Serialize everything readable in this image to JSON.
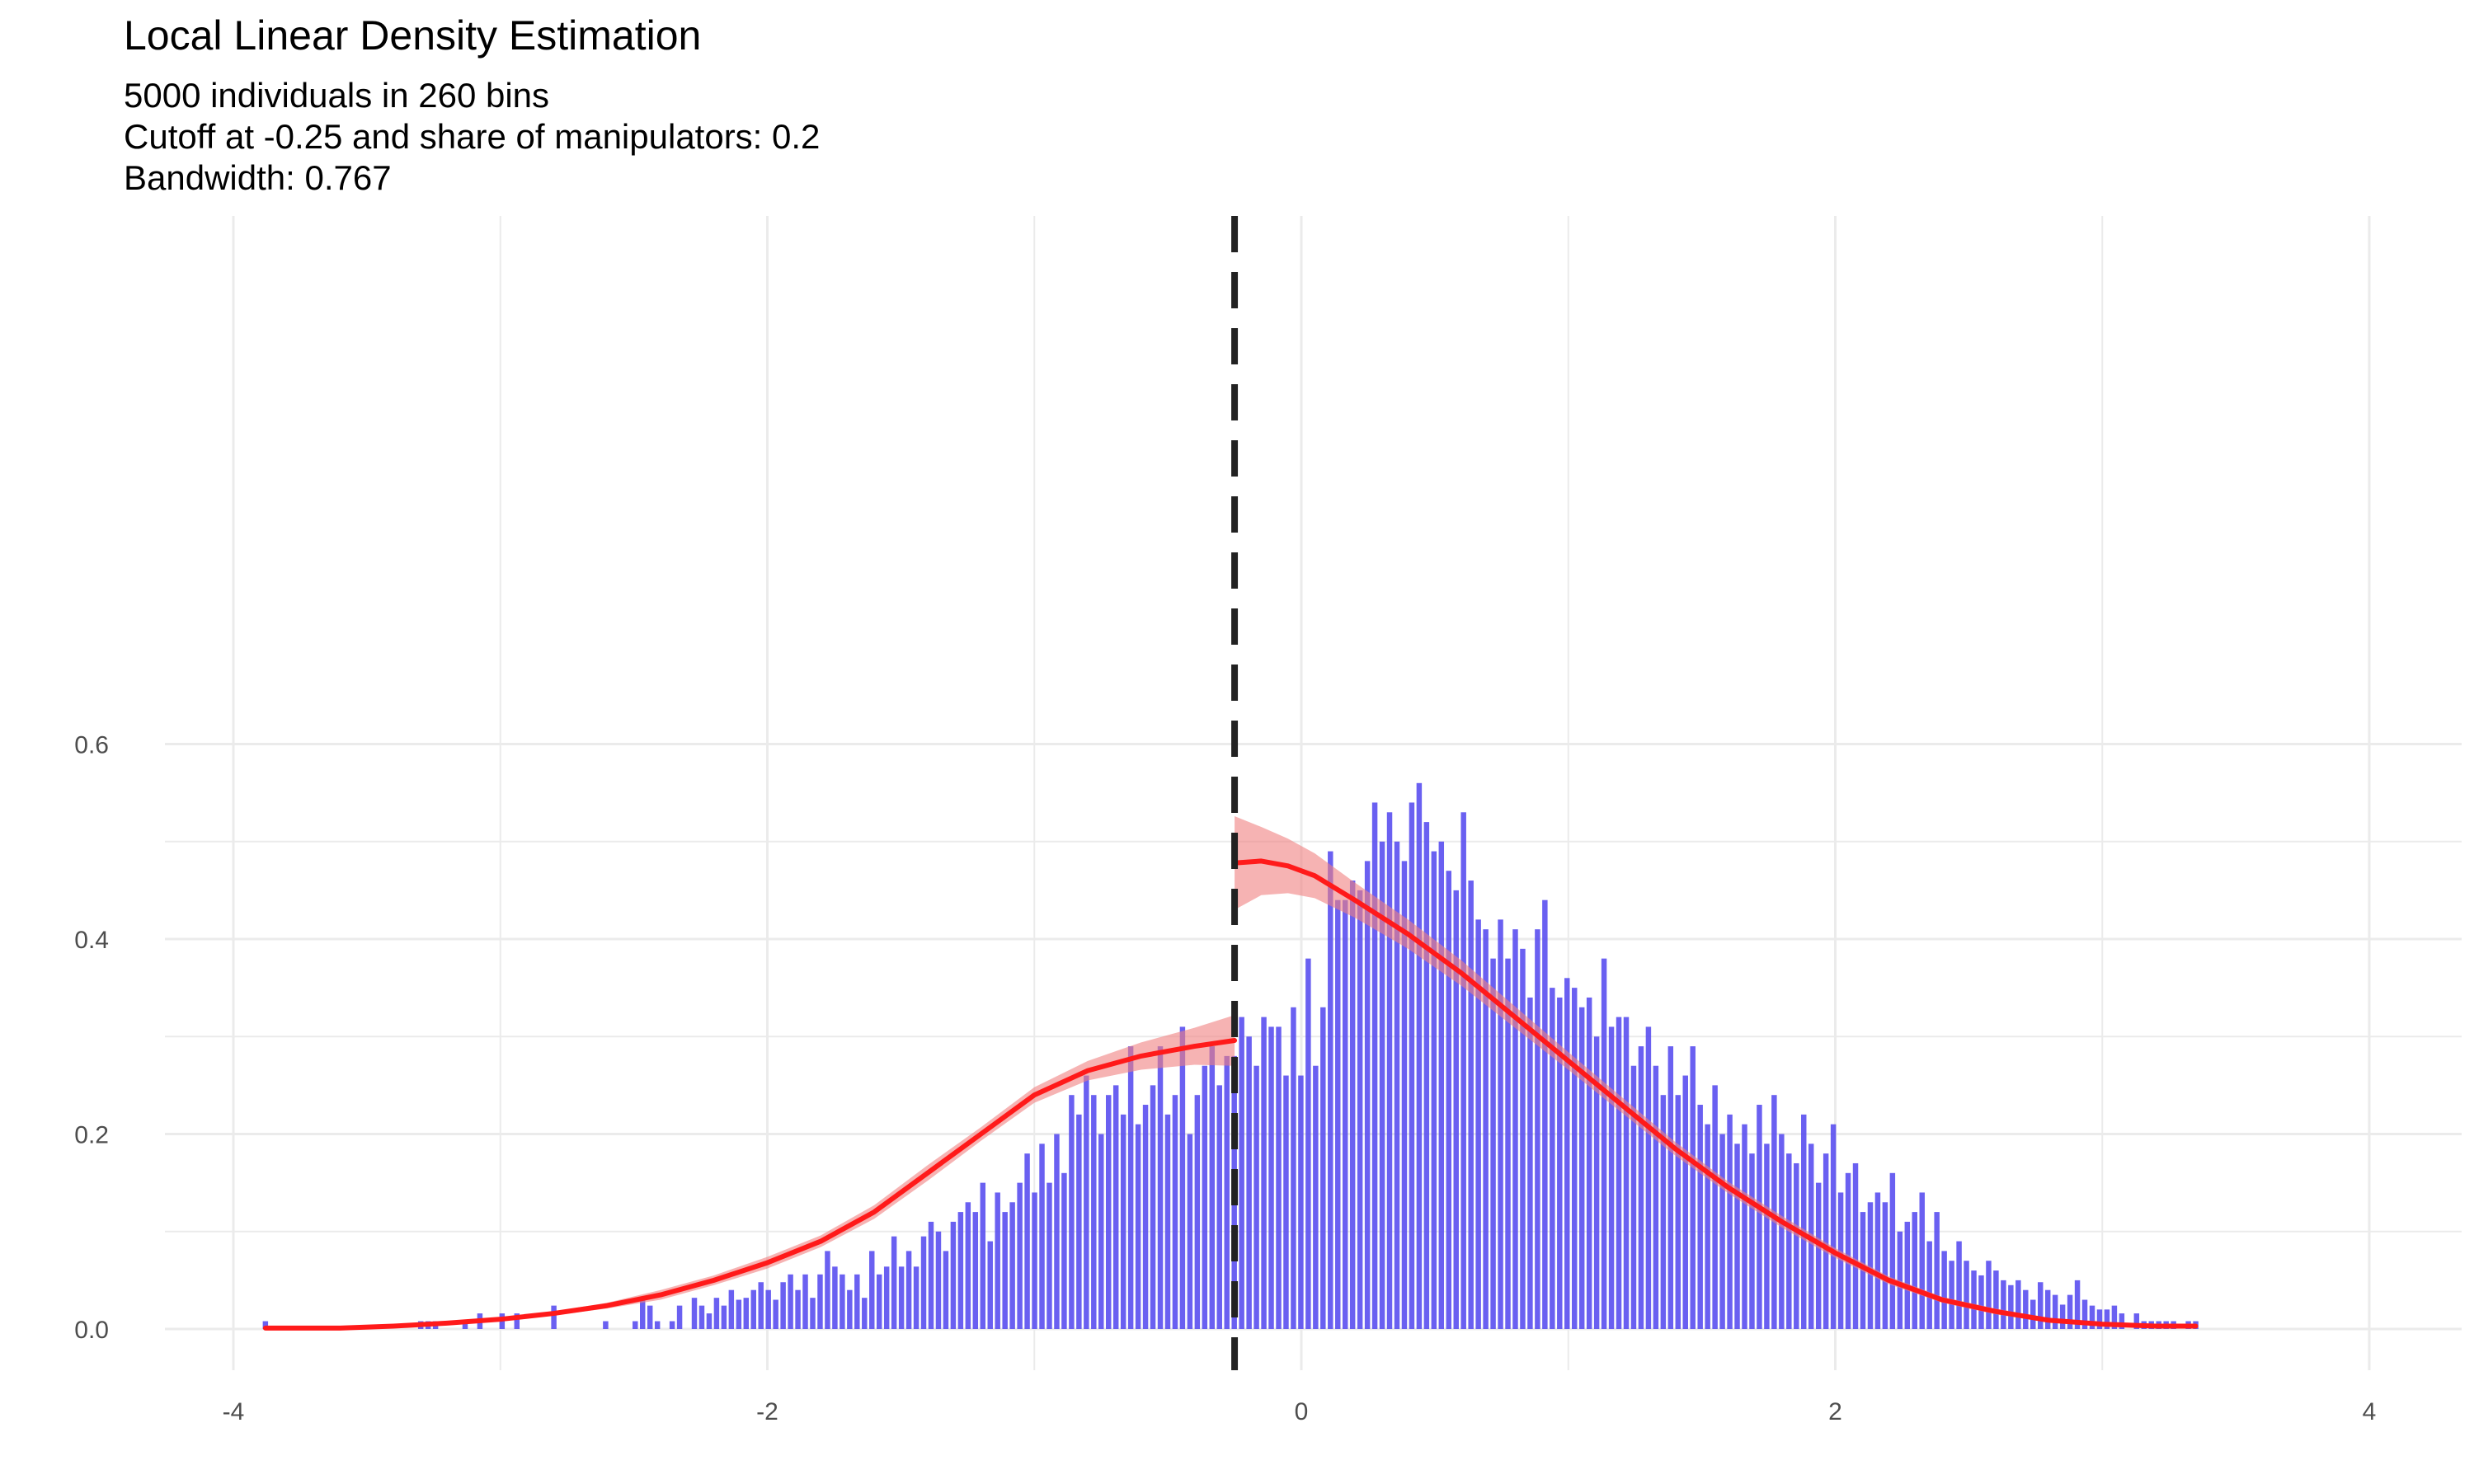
{
  "chart_data": {
    "type": "bar",
    "title": "Local Linear Density Estimation",
    "subtitle_lines": [
      "5000 individuals in 260 bins",
      "Cutoff at -0.25 and share of manipulators: 0.2",
      "Bandwidth: 0.767"
    ],
    "xlabel": "",
    "ylabel": "",
    "xlim": [
      -4.0,
      4.0
    ],
    "ylim": [
      0.0,
      0.6
    ],
    "x_ticks": [
      -4,
      -2,
      0,
      2,
      4
    ],
    "y_ticks": [
      0.0,
      0.2,
      0.4,
      0.6
    ],
    "grid": true,
    "cutoff": -0.25,
    "bin_range": [
      -3.88,
      3.35
    ],
    "histogram_values": [
      0.008,
      0.0,
      0.0,
      0.0,
      0.0,
      0.0,
      0.0,
      0.0,
      0.0,
      0.0,
      0.0,
      0.0,
      0.0,
      0.0,
      0.0,
      0.0,
      0.0,
      0.0,
      0.0,
      0.0,
      0.0,
      0.008,
      0.008,
      0.008,
      0.0,
      0.0,
      0.0,
      0.008,
      0.0,
      0.016,
      0.0,
      0.0,
      0.016,
      0.0,
      0.016,
      0.0,
      0.0,
      0.0,
      0.0,
      0.024,
      0.0,
      0.0,
      0.0,
      0.0,
      0.0,
      0.0,
      0.008,
      0.0,
      0.0,
      0.0,
      0.008,
      0.032,
      0.024,
      0.008,
      0.0,
      0.008,
      0.024,
      0.0,
      0.032,
      0.024,
      0.016,
      0.032,
      0.024,
      0.04,
      0.03,
      0.032,
      0.04,
      0.048,
      0.04,
      0.03,
      0.048,
      0.056,
      0.04,
      0.056,
      0.032,
      0.056,
      0.08,
      0.064,
      0.056,
      0.04,
      0.056,
      0.032,
      0.08,
      0.056,
      0.064,
      0.095,
      0.064,
      0.08,
      0.064,
      0.095,
      0.11,
      0.1,
      0.08,
      0.11,
      0.12,
      0.13,
      0.12,
      0.15,
      0.09,
      0.14,
      0.12,
      0.13,
      0.15,
      0.18,
      0.14,
      0.19,
      0.15,
      0.2,
      0.16,
      0.24,
      0.22,
      0.26,
      0.24,
      0.2,
      0.24,
      0.25,
      0.22,
      0.29,
      0.21,
      0.23,
      0.25,
      0.29,
      0.22,
      0.24,
      0.31,
      0.2,
      0.24,
      0.27,
      0.29,
      0.25,
      0.28,
      0.28,
      0.32,
      0.3,
      0.27,
      0.32,
      0.31,
      0.31,
      0.26,
      0.33,
      0.26,
      0.38,
      0.27,
      0.33,
      0.49,
      0.44,
      0.44,
      0.46,
      0.45,
      0.48,
      0.54,
      0.5,
      0.53,
      0.5,
      0.48,
      0.54,
      0.56,
      0.52,
      0.49,
      0.5,
      0.47,
      0.45,
      0.53,
      0.46,
      0.42,
      0.41,
      0.38,
      0.42,
      0.38,
      0.41,
      0.39,
      0.34,
      0.41,
      0.44,
      0.35,
      0.34,
      0.36,
      0.35,
      0.33,
      0.34,
      0.3,
      0.38,
      0.31,
      0.32,
      0.32,
      0.27,
      0.29,
      0.31,
      0.27,
      0.24,
      0.29,
      0.24,
      0.26,
      0.29,
      0.23,
      0.21,
      0.25,
      0.2,
      0.22,
      0.19,
      0.21,
      0.18,
      0.23,
      0.19,
      0.24,
      0.2,
      0.18,
      0.17,
      0.22,
      0.19,
      0.15,
      0.18,
      0.21,
      0.14,
      0.16,
      0.17,
      0.12,
      0.13,
      0.14,
      0.13,
      0.16,
      0.1,
      0.11,
      0.12,
      0.14,
      0.09,
      0.12,
      0.08,
      0.07,
      0.09,
      0.07,
      0.06,
      0.055,
      0.07,
      0.06,
      0.05,
      0.045,
      0.05,
      0.04,
      0.03,
      0.048,
      0.04,
      0.035,
      0.025,
      0.035,
      0.05,
      0.03,
      0.024,
      0.02,
      0.02,
      0.024,
      0.016,
      0.0,
      0.016,
      0.008,
      0.008,
      0.008,
      0.008,
      0.008,
      0.0,
      0.008,
      0.008
    ],
    "density_fit": {
      "left": {
        "x": [
          -3.88,
          -3.6,
          -3.4,
          -3.2,
          -3.0,
          -2.8,
          -2.6,
          -2.4,
          -2.2,
          -2.0,
          -1.8,
          -1.6,
          -1.4,
          -1.2,
          -1.0,
          -0.8,
          -0.6,
          -0.4,
          -0.25
        ],
        "y": [
          0.001,
          0.001,
          0.003,
          0.006,
          0.01,
          0.016,
          0.024,
          0.035,
          0.05,
          0.068,
          0.09,
          0.12,
          0.16,
          0.2,
          0.24,
          0.265,
          0.28,
          0.29,
          0.296
        ],
        "lower": [
          0.001,
          0.001,
          0.002,
          0.005,
          0.009,
          0.014,
          0.021,
          0.03,
          0.045,
          0.062,
          0.084,
          0.113,
          0.152,
          0.193,
          0.232,
          0.255,
          0.266,
          0.271,
          0.27
        ],
        "upper": [
          0.002,
          0.002,
          0.004,
          0.007,
          0.011,
          0.018,
          0.027,
          0.04,
          0.055,
          0.074,
          0.096,
          0.127,
          0.168,
          0.207,
          0.248,
          0.275,
          0.294,
          0.309,
          0.322
        ]
      },
      "right": {
        "x": [
          -0.25,
          -0.15,
          -0.05,
          0.05,
          0.2,
          0.4,
          0.6,
          0.8,
          1.0,
          1.2,
          1.4,
          1.6,
          1.8,
          2.0,
          2.2,
          2.4,
          2.6,
          2.8,
          3.0,
          3.2,
          3.35
        ],
        "y": [
          0.478,
          0.48,
          0.475,
          0.465,
          0.44,
          0.405,
          0.365,
          0.32,
          0.275,
          0.23,
          0.185,
          0.145,
          0.11,
          0.078,
          0.05,
          0.03,
          0.018,
          0.009,
          0.005,
          0.003,
          0.003
        ],
        "lower": [
          0.43,
          0.445,
          0.447,
          0.442,
          0.422,
          0.39,
          0.352,
          0.309,
          0.266,
          0.222,
          0.178,
          0.139,
          0.104,
          0.073,
          0.046,
          0.027,
          0.015,
          0.007,
          0.003,
          0.002,
          0.002
        ],
        "upper": [
          0.526,
          0.515,
          0.503,
          0.488,
          0.458,
          0.42,
          0.378,
          0.331,
          0.284,
          0.238,
          0.192,
          0.151,
          0.116,
          0.083,
          0.054,
          0.033,
          0.021,
          0.011,
          0.007,
          0.004,
          0.004
        ]
      }
    },
    "colors": {
      "bars": "#5a4ff0",
      "fit_line": "#ff1a1a",
      "fit_band": "#f08080",
      "cutoff_line": "#222222",
      "grid": "#ebebeb"
    }
  }
}
